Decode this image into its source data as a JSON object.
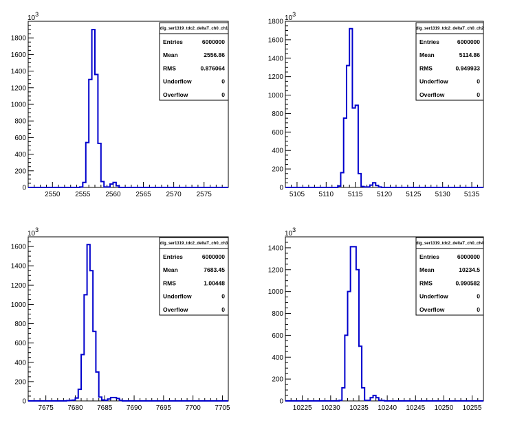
{
  "colors": {
    "histogram": "#0000cc",
    "axis": "#000000",
    "background": "#ffffff"
  },
  "chart_data": [
    {
      "type": "bar",
      "title": "dig_ser1319_tdc2_deltaT_ch0_ch1",
      "y_multiplier": "10",
      "y_exp": "3",
      "xlim": [
        2546,
        2579
      ],
      "ylim": [
        0,
        2000
      ],
      "grid": false,
      "xticks": [
        2550,
        2555,
        2560,
        2565,
        2570,
        2575
      ],
      "yticks": [
        0,
        200,
        400,
        600,
        800,
        1000,
        1200,
        1400,
        1600,
        1800
      ],
      "bin_edges": [
        2554.5,
        2555,
        2555.5,
        2556,
        2556.5,
        2557,
        2557.5,
        2558,
        2558.5,
        2559,
        2559.5,
        2560,
        2560.5,
        2561
      ],
      "values": [
        5,
        60,
        540,
        1300,
        1900,
        1360,
        530,
        70,
        5,
        5,
        40,
        60,
        20
      ],
      "stats": [
        {
          "label": "Entries",
          "value": "6000000"
        },
        {
          "label": "Mean",
          "value": "2556.86"
        },
        {
          "label": "RMS",
          "value": "0.876064"
        },
        {
          "label": "Underflow",
          "value": "0"
        },
        {
          "label": "Overflow",
          "value": "0"
        }
      ]
    },
    {
      "type": "bar",
      "title": "dig_ser1319_tdc2_deltaT_ch0_ch2",
      "y_multiplier": "10",
      "y_exp": "3",
      "xlim": [
        5103,
        5137
      ],
      "ylim": [
        0,
        1800
      ],
      "grid": false,
      "xticks": [
        5105,
        5110,
        5115,
        5120,
        5125,
        5130,
        5135
      ],
      "yticks": [
        0,
        200,
        400,
        600,
        800,
        1000,
        1200,
        1400,
        1600,
        1800
      ],
      "bin_edges": [
        5112,
        5112.5,
        5113,
        5113.5,
        5114,
        5114.5,
        5115,
        5115.5,
        5116,
        5116.5,
        5117,
        5117.5,
        5118,
        5118.5,
        5119,
        5119.5
      ],
      "values": [
        15,
        160,
        750,
        1320,
        1720,
        860,
        890,
        150,
        10,
        5,
        5,
        25,
        50,
        20,
        5
      ],
      "stats": [
        {
          "label": "Entries",
          "value": "6000000"
        },
        {
          "label": "Mean",
          "value": "5114.86"
        },
        {
          "label": "RMS",
          "value": "0.949933"
        },
        {
          "label": "Underflow",
          "value": "0"
        },
        {
          "label": "Overflow",
          "value": "0"
        }
      ]
    },
    {
      "type": "bar",
      "title": "dig_ser1319_tdc2_deltaT_ch0_ch3",
      "y_multiplier": "10",
      "y_exp": "3",
      "xlim": [
        7672,
        7706
      ],
      "ylim": [
        0,
        1700
      ],
      "grid": false,
      "xticks": [
        7675,
        7680,
        7685,
        7690,
        7695,
        7700,
        7705
      ],
      "yticks": [
        0,
        200,
        400,
        600,
        800,
        1000,
        1200,
        1400,
        1600
      ],
      "bin_edges": [
        7678.5,
        7679,
        7679.5,
        7680,
        7680.5,
        7681,
        7681.5,
        7682,
        7682.5,
        7683,
        7683.5,
        7684,
        7684.5,
        7685,
        7685.5,
        7686,
        7686.5,
        7687,
        7687.5,
        7688
      ],
      "values": [
        3,
        5,
        8,
        30,
        120,
        480,
        1100,
        1620,
        1350,
        720,
        300,
        40,
        10,
        5,
        20,
        35,
        35,
        25,
        5
      ],
      "stats": [
        {
          "label": "Entries",
          "value": "6000000"
        },
        {
          "label": "Mean",
          "value": "7683.45"
        },
        {
          "label": "RMS",
          "value": "1.00448"
        },
        {
          "label": "Underflow",
          "value": "0"
        },
        {
          "label": "Overflow",
          "value": "0"
        }
      ]
    },
    {
      "type": "bar",
      "title": "dig_ser1319_tdc2_deltaT_ch0_ch4",
      "y_multiplier": "10",
      "y_exp": "3",
      "xlim": [
        10222,
        10257
      ],
      "ylim": [
        0,
        1500
      ],
      "grid": false,
      "xticks": [
        10225,
        10230,
        10235,
        10240,
        10245,
        10250,
        10255
      ],
      "yticks": [
        0,
        200,
        400,
        600,
        800,
        1000,
        1200,
        1400
      ],
      "bin_edges": [
        10231.5,
        10232,
        10232.5,
        10233,
        10233.5,
        10234,
        10234.5,
        10235,
        10235.5,
        10236,
        10236.5,
        10237,
        10237.5,
        10238,
        10238.5,
        10239,
        10239.5
      ],
      "values": [
        5,
        120,
        600,
        1000,
        1410,
        1410,
        1200,
        500,
        120,
        5,
        5,
        30,
        50,
        30,
        5,
        3
      ],
      "stats": [
        {
          "label": "Entries",
          "value": "6000000"
        },
        {
          "label": "Mean",
          "value": "10234.5"
        },
        {
          "label": "RMS",
          "value": "0.990582"
        },
        {
          "label": "Underflow",
          "value": "0"
        },
        {
          "label": "Overflow",
          "value": "0"
        }
      ]
    }
  ]
}
